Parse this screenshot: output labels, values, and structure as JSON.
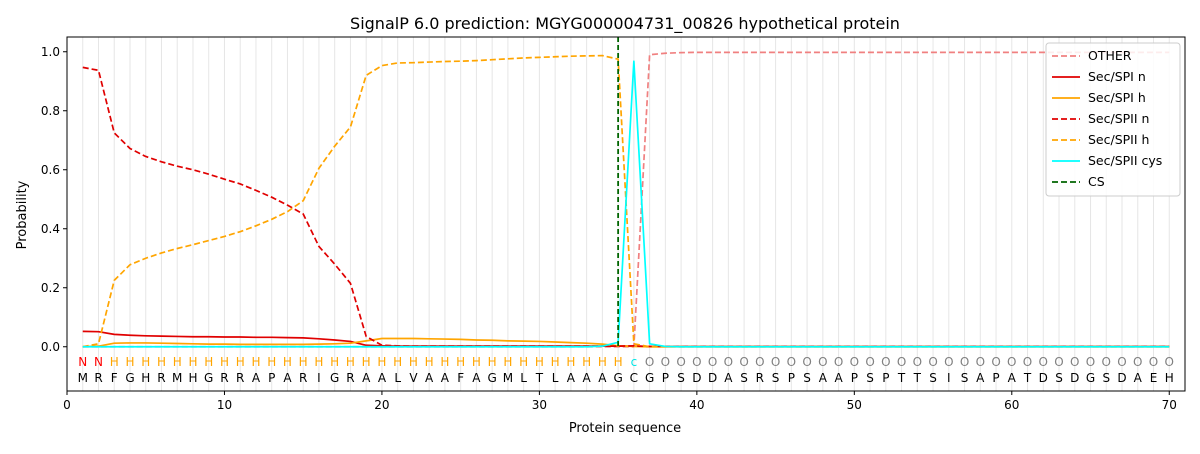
{
  "chart_data": {
    "type": "line",
    "title": "SignalP 6.0 prediction: MGYG000004731_00826 hypothetical protein",
    "xlabel": "Protein sequence",
    "ylabel": "Probability",
    "xlim": [
      0,
      71
    ],
    "ylim": [
      -0.15,
      1.05
    ],
    "x_ticks": [
      0,
      10,
      20,
      30,
      40,
      50,
      60,
      70
    ],
    "y_ticks": [
      0.0,
      0.2,
      0.4,
      0.6,
      0.8,
      1.0
    ],
    "x_tick_labels": [
      "0",
      "10",
      "20",
      "30",
      "40",
      "50",
      "60",
      "70"
    ],
    "y_tick_labels": [
      "0.0",
      "0.2",
      "0.4",
      "0.6",
      "0.8",
      "1.0"
    ],
    "grid": "vertical lines at each residue position",
    "legend_position": "top-right",
    "sequence": [
      "M",
      "R",
      "F",
      "G",
      "H",
      "R",
      "M",
      "H",
      "G",
      "R",
      "R",
      "A",
      "P",
      "A",
      "R",
      "I",
      "G",
      "R",
      "A",
      "A",
      "L",
      "V",
      "A",
      "A",
      "F",
      "A",
      "G",
      "M",
      "L",
      "T",
      "L",
      "A",
      "A",
      "A",
      "G",
      "C",
      "G",
      "P",
      "S",
      "D",
      "D",
      "A",
      "S",
      "R",
      "S",
      "P",
      "S",
      "A",
      "A",
      "P",
      "S",
      "P",
      "T",
      "T",
      "S",
      "I",
      "S",
      "A",
      "P",
      "A",
      "T",
      "D",
      "S",
      "D",
      "G",
      "S",
      "D",
      "A",
      "E",
      "H"
    ],
    "region_labels": [
      "N",
      "N",
      "H",
      "H",
      "H",
      "H",
      "H",
      "H",
      "H",
      "H",
      "H",
      "H",
      "H",
      "H",
      "H",
      "H",
      "H",
      "H",
      "H",
      "H",
      "H",
      "H",
      "H",
      "H",
      "H",
      "H",
      "H",
      "H",
      "H",
      "H",
      "H",
      "H",
      "H",
      "H",
      "H",
      "C",
      "O",
      "O",
      "O",
      "O",
      "O",
      "O",
      "O",
      "O",
      "O",
      "O",
      "O",
      "O",
      "O",
      "O",
      "O",
      "O",
      "O",
      "O",
      "O",
      "O",
      "O",
      "O",
      "O",
      "O",
      "O",
      "O",
      "O",
      "O",
      "O",
      "O",
      "O",
      "O",
      "O",
      "O"
    ],
    "region_colors": {
      "N": "#ff0000",
      "H": "#ffa500",
      "C": "#00e5e5",
      "O": "#808080"
    },
    "cleavage_site": 35,
    "series": [
      {
        "name": "OTHER",
        "color": "#f08080",
        "dash": "dashed",
        "values": [
          0,
          0,
          0,
          0,
          0,
          0,
          0,
          0,
          0,
          0,
          0,
          0,
          0,
          0,
          0,
          0,
          0,
          0,
          0,
          0,
          0,
          0,
          0,
          0,
          0,
          0,
          0,
          0,
          0,
          0,
          0,
          0,
          0,
          0,
          0,
          0,
          0.99,
          0.995,
          0.997,
          0.998,
          0.998,
          0.998,
          0.998,
          0.998,
          0.998,
          0.998,
          0.998,
          0.998,
          0.998,
          0.998,
          0.998,
          0.998,
          0.998,
          0.998,
          0.998,
          0.998,
          0.998,
          0.998,
          0.998,
          0.998,
          0.998,
          0.998,
          0.998,
          0.998,
          0.998,
          0.998,
          0.998,
          0.998,
          0.998,
          0.998
        ]
      },
      {
        "name": "Sec/SPI n",
        "color": "#e00000",
        "dash": "solid",
        "values": [
          0.052,
          0.051,
          0.042,
          0.039,
          0.037,
          0.036,
          0.035,
          0.034,
          0.034,
          0.033,
          0.033,
          0.032,
          0.032,
          0.031,
          0.03,
          0.027,
          0.023,
          0.018,
          0.005,
          0.003,
          0.002,
          0.002,
          0.002,
          0.002,
          0.002,
          0.002,
          0.002,
          0.002,
          0.002,
          0.002,
          0.002,
          0.002,
          0.002,
          0.002,
          0.002,
          0.002,
          0.001,
          0.001,
          0.001,
          0.001,
          0.001,
          0.001,
          0.001,
          0.001,
          0.001,
          0.001,
          0.001,
          0.001,
          0.001,
          0.001,
          0.001,
          0.001,
          0.001,
          0.001,
          0.001,
          0.001,
          0.001,
          0.001,
          0.001,
          0.001,
          0.001,
          0.001,
          0.001,
          0.001,
          0.001,
          0.001,
          0.001,
          0.001,
          0.001,
          0.001
        ]
      },
      {
        "name": "Sec/SPI h",
        "color": "#ffa500",
        "dash": "solid",
        "values": [
          0.0,
          0.002,
          0.012,
          0.013,
          0.013,
          0.012,
          0.011,
          0.01,
          0.009,
          0.009,
          0.008,
          0.008,
          0.008,
          0.008,
          0.008,
          0.009,
          0.01,
          0.012,
          0.02,
          0.028,
          0.028,
          0.028,
          0.027,
          0.026,
          0.025,
          0.023,
          0.022,
          0.02,
          0.019,
          0.018,
          0.016,
          0.014,
          0.012,
          0.009,
          0.003,
          0.001,
          0.0,
          0.0,
          0.0,
          0.0,
          0.0,
          0.0,
          0.0,
          0.0,
          0.0,
          0.0,
          0.0,
          0.0,
          0.0,
          0.0,
          0.0,
          0.0,
          0.0,
          0.0,
          0.0,
          0.0,
          0.0,
          0.0,
          0.0,
          0.0,
          0.0,
          0.0,
          0.0,
          0.0,
          0.0,
          0.0,
          0.0,
          0.0,
          0.0,
          0.0
        ]
      },
      {
        "name": "Sec/SPII n",
        "color": "#e00000",
        "dash": "dashed",
        "values": [
          0.947,
          0.937,
          0.725,
          0.672,
          0.645,
          0.627,
          0.612,
          0.6,
          0.585,
          0.568,
          0.552,
          0.53,
          0.507,
          0.48,
          0.45,
          0.34,
          0.28,
          0.215,
          0.035,
          0.005,
          0.003,
          0.002,
          0.002,
          0.002,
          0.002,
          0.002,
          0.002,
          0.002,
          0.002,
          0.002,
          0.002,
          0.002,
          0.002,
          0.002,
          0.002,
          0.003,
          0.001,
          0.001,
          0.001,
          0.001,
          0.001,
          0.001,
          0.001,
          0.001,
          0.001,
          0.001,
          0.001,
          0.001,
          0.001,
          0.001,
          0.001,
          0.001,
          0.001,
          0.001,
          0.001,
          0.001,
          0.001,
          0.001,
          0.001,
          0.001,
          0.001,
          0.001,
          0.001,
          0.001,
          0.001,
          0.001,
          0.001,
          0.001,
          0.001,
          0.001
        ]
      },
      {
        "name": "Sec/SPII h",
        "color": "#ffa500",
        "dash": "dashed",
        "values": [
          0.0,
          0.01,
          0.225,
          0.278,
          0.3,
          0.318,
          0.333,
          0.346,
          0.36,
          0.374,
          0.39,
          0.41,
          0.432,
          0.458,
          0.495,
          0.605,
          0.68,
          0.745,
          0.92,
          0.953,
          0.962,
          0.963,
          0.965,
          0.967,
          0.968,
          0.97,
          0.973,
          0.976,
          0.979,
          0.981,
          0.983,
          0.985,
          0.986,
          0.987,
          0.975,
          0.01,
          0.0,
          0.0,
          0.0,
          0.0,
          0.0,
          0.0,
          0.0,
          0.0,
          0.0,
          0.0,
          0.0,
          0.0,
          0.0,
          0.0,
          0.0,
          0.0,
          0.0,
          0.0,
          0.0,
          0.0,
          0.0,
          0.0,
          0.0,
          0.0,
          0.0,
          0.0,
          0.0,
          0.0,
          0.0,
          0.0,
          0.0,
          0.0,
          0.0,
          0.0
        ]
      },
      {
        "name": "Sec/SPII cys",
        "color": "#00ffff",
        "dash": "solid",
        "values": [
          0,
          0,
          0,
          0,
          0,
          0,
          0,
          0,
          0,
          0,
          0,
          0,
          0,
          0,
          0,
          0,
          0,
          0,
          0,
          0,
          0,
          0,
          0,
          0,
          0,
          0,
          0,
          0,
          0,
          0,
          0,
          0,
          0,
          0.002,
          0.015,
          0.968,
          0.01,
          0.001,
          0.0,
          0.0,
          0.0,
          0.0,
          0.0,
          0.0,
          0.0,
          0.0,
          0.0,
          0.0,
          0.0,
          0.0,
          0.0,
          0.0,
          0.0,
          0.0,
          0.0,
          0.0,
          0.0,
          0.0,
          0.0,
          0.0,
          0.0,
          0.0,
          0.0,
          0.0,
          0.0,
          0.0,
          0.0,
          0.0,
          0.0,
          0.0
        ]
      },
      {
        "name": "CS",
        "color": "#006400",
        "dash": "dashed",
        "vertical_at": 35
      }
    ]
  }
}
